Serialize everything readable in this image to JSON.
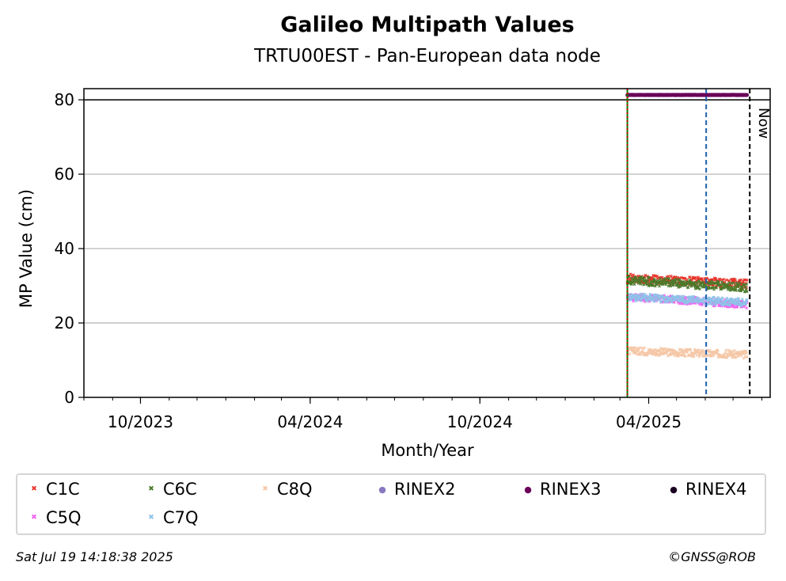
{
  "header": {
    "title": "Galileo Multipath Values",
    "subtitle": "TRTU00EST - Pan-European data node"
  },
  "footer": {
    "timestamp": "Sat Jul 19 14:18:38 2025",
    "credit": "©GNSS@ROB"
  },
  "annotations": {
    "now_label": "Now"
  },
  "chart_data": {
    "type": "scatter",
    "title": "Galileo Multipath Values",
    "subtitle": "TRTU00EST - Pan-European data node",
    "xlabel": "Month/Year",
    "ylabel": "MP Value (cm)",
    "xlim": [
      "2023-08-01",
      "2025-08-10"
    ],
    "ylim": [
      0,
      83
    ],
    "reference_line_y": 80,
    "grid": "horizontal",
    "yticks": [
      "0",
      "20",
      "40",
      "60",
      "80"
    ],
    "xticks": [
      {
        "date": "2023-10-01",
        "label": "10/2023"
      },
      {
        "date": "2024-04-01",
        "label": "04/2024"
      },
      {
        "date": "2024-10-01",
        "label": "10/2024"
      },
      {
        "date": "2025-04-01",
        "label": "04/2025"
      }
    ],
    "vertical_lines": [
      {
        "date": "2025-03-09",
        "color": "#008000",
        "style": "solid"
      },
      {
        "date": "2025-03-09",
        "color": "#cc0000",
        "style": "dotted"
      },
      {
        "date": "2025-06-02",
        "color": "#1f5fb0",
        "style": "dashed"
      },
      {
        "date": "2025-07-19",
        "color": "#000000",
        "style": "dashed",
        "label": "Now"
      }
    ],
    "legend_placement": "bottom",
    "series": [
      {
        "name": "C1C",
        "color": "#e8332a",
        "marker": "x",
        "start": "2025-03-09",
        "end": "2025-07-16",
        "y_start": 32,
        "y_end": 30.5,
        "spread": 1.2
      },
      {
        "name": "C6C",
        "color": "#4a7a2a",
        "marker": "x",
        "start": "2025-03-09",
        "end": "2025-07-16",
        "y_start": 31.5,
        "y_end": 29.5,
        "spread": 1.2
      },
      {
        "name": "C8Q",
        "color": "#f5c7a6",
        "marker": "x",
        "start": "2025-03-09",
        "end": "2025-07-16",
        "y_start": 12.5,
        "y_end": 11.5,
        "spread": 1.0
      },
      {
        "name": "RINEX2",
        "color": "#8878c0",
        "marker": "o",
        "start": null,
        "end": null,
        "y_start": null,
        "y_end": null,
        "spread": 0
      },
      {
        "name": "RINEX3",
        "color": "#6a005a",
        "marker": "o",
        "start": "2025-03-09",
        "end": "2025-07-16",
        "y_start": 81.3,
        "y_end": 81.3,
        "spread": 0.05
      },
      {
        "name": "RINEX4",
        "color": "#1a0020",
        "marker": "o",
        "start": null,
        "end": null,
        "y_start": null,
        "y_end": null,
        "spread": 0
      },
      {
        "name": "C5Q",
        "color": "#f060f0",
        "marker": "x",
        "start": "2025-03-09",
        "end": "2025-07-16",
        "y_start": 27,
        "y_end": 25,
        "spread": 1.0
      },
      {
        "name": "C7Q",
        "color": "#8ec3e8",
        "marker": "x",
        "start": "2025-03-09",
        "end": "2025-07-16",
        "y_start": 27,
        "y_end": 25.5,
        "spread": 1.0
      }
    ]
  }
}
